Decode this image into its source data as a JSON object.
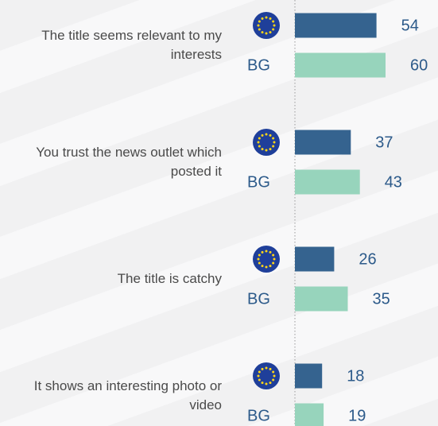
{
  "chart_data": {
    "type": "bar",
    "categories": [
      "The title seems relevant to my interests",
      "You trust the news outlet which posted it",
      "The title is catchy",
      "It shows an interesting photo or video"
    ],
    "series": [
      {
        "color": "#35638f",
        "values": [
          54,
          37,
          26,
          18
        ]
      },
      {
        "name": "BG",
        "color": "#97d4bc",
        "values": [
          60,
          43,
          35,
          19
        ]
      }
    ]
  }
}
